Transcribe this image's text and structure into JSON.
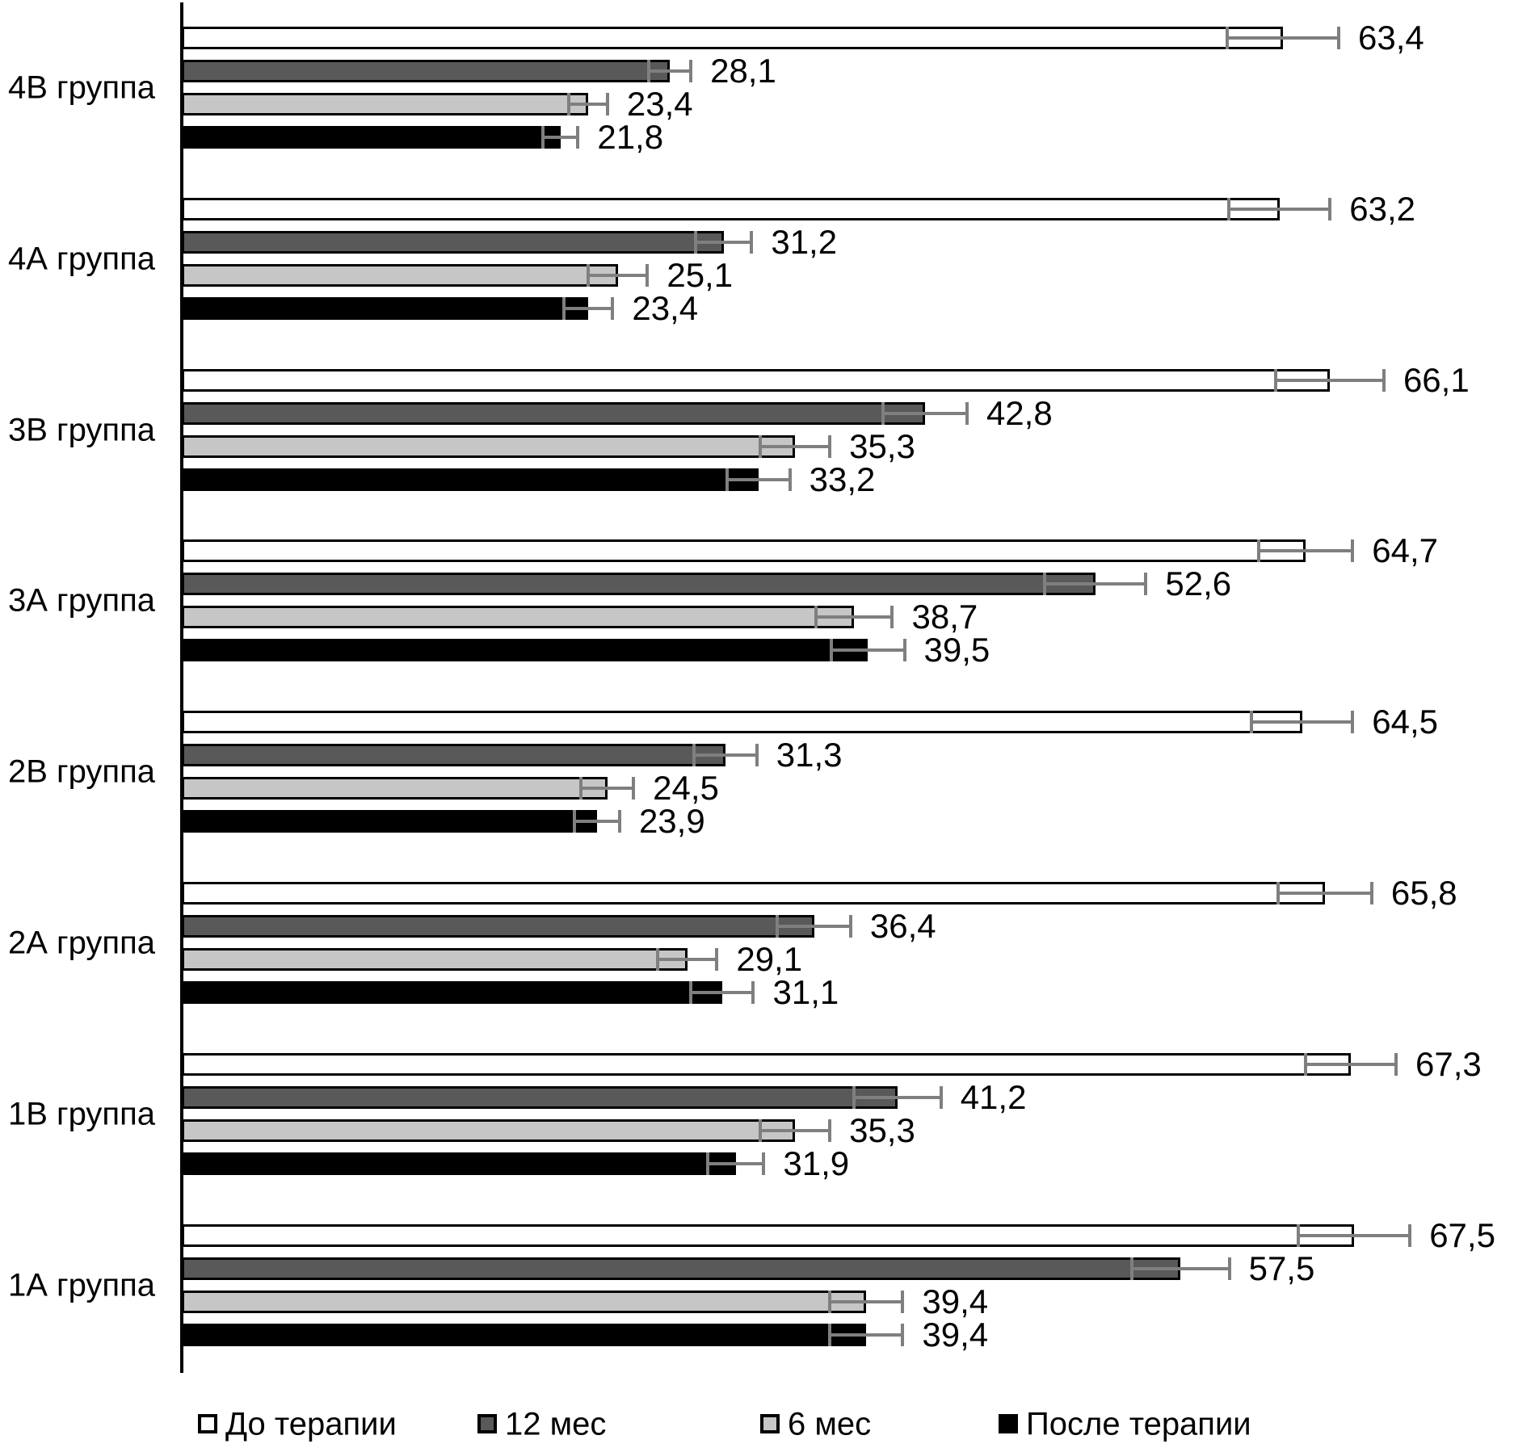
{
  "chart_data": {
    "type": "bar",
    "orientation": "horizontal",
    "title": "",
    "xlabel": "",
    "ylabel": "",
    "value_axis": {
      "min": 0,
      "implied_max": 72,
      "gridlines": false,
      "tick_labels": "none"
    },
    "decimal_separator": ",",
    "legend_position": "bottom",
    "legend": [
      {
        "name": "До терапии",
        "fill": "#ffffff"
      },
      {
        "name": "12 мес",
        "fill": "#595959"
      },
      {
        "name": "6 мес",
        "fill": "#c6c6c6"
      },
      {
        "name": "После терапии",
        "fill": "#000000"
      }
    ],
    "colors": {
      "bar_border": "#000000",
      "error_bar": "#7f7f7f",
      "text": "#000000",
      "background": "#ffffff"
    },
    "groups": [
      {
        "label": "4В группа",
        "bars": [
          {
            "series": "До терапии",
            "value": 63.4,
            "label": "63,4",
            "error": 3.3
          },
          {
            "series": "12 мес",
            "value": 28.1,
            "label": "28,1",
            "error": 1.3
          },
          {
            "series": "6 мес",
            "value": 23.4,
            "label": "23,4",
            "error": 1.2
          },
          {
            "series": "После терапии",
            "value": 21.8,
            "label": "21,8",
            "error": 1.1
          }
        ]
      },
      {
        "label": "4А группа",
        "bars": [
          {
            "series": "До терапии",
            "value": 63.2,
            "label": "63,2",
            "error": 3.0
          },
          {
            "series": "12 мес",
            "value": 31.2,
            "label": "31,2",
            "error": 1.7
          },
          {
            "series": "6 мес",
            "value": 25.1,
            "label": "25,1",
            "error": 1.8
          },
          {
            "series": "После терапии",
            "value": 23.4,
            "label": "23,4",
            "error": 1.5
          }
        ]
      },
      {
        "label": "3В группа",
        "bars": [
          {
            "series": "До терапии",
            "value": 66.1,
            "label": "66,1",
            "error": 3.2
          },
          {
            "series": "12 мес",
            "value": 42.8,
            "label": "42,8",
            "error": 2.5
          },
          {
            "series": "6 мес",
            "value": 35.3,
            "label": "35,3",
            "error": 2.1
          },
          {
            "series": "После терапии",
            "value": 33.2,
            "label": "33,2",
            "error": 1.9
          }
        ]
      },
      {
        "label": "3А группа",
        "bars": [
          {
            "series": "До терапии",
            "value": 64.7,
            "label": "64,7",
            "error": 2.8
          },
          {
            "series": "12 мес",
            "value": 52.6,
            "label": "52,6",
            "error": 3.0
          },
          {
            "series": "6 мес",
            "value": 38.7,
            "label": "38,7",
            "error": 2.3
          },
          {
            "series": "После терапии",
            "value": 39.5,
            "label": "39,5",
            "error": 2.2
          }
        ]
      },
      {
        "label": "2В группа",
        "bars": [
          {
            "series": "До терапии",
            "value": 64.5,
            "label": "64,5",
            "error": 3.0
          },
          {
            "series": "12 мес",
            "value": 31.3,
            "label": "31,3",
            "error": 1.9
          },
          {
            "series": "6 мес",
            "value": 24.5,
            "label": "24,5",
            "error": 1.6
          },
          {
            "series": "После терапии",
            "value": 23.9,
            "label": "23,9",
            "error": 1.4
          }
        ]
      },
      {
        "label": "2А группа",
        "bars": [
          {
            "series": "До терапии",
            "value": 65.8,
            "label": "65,8",
            "error": 2.8
          },
          {
            "series": "12 мес",
            "value": 36.4,
            "label": "36,4",
            "error": 2.2
          },
          {
            "series": "6 мес",
            "value": 29.1,
            "label": "29,1",
            "error": 1.8
          },
          {
            "series": "После терапии",
            "value": 31.1,
            "label": "31,1",
            "error": 1.9
          }
        ]
      },
      {
        "label": "1В группа",
        "bars": [
          {
            "series": "До терапии",
            "value": 67.3,
            "label": "67,3",
            "error": 2.7
          },
          {
            "series": "12 мес",
            "value": 41.2,
            "label": "41,2",
            "error": 2.6
          },
          {
            "series": "6 мес",
            "value": 35.3,
            "label": "35,3",
            "error": 2.1
          },
          {
            "series": "После терапии",
            "value": 31.9,
            "label": "31,9",
            "error": 1.7
          }
        ]
      },
      {
        "label": "1А группа",
        "bars": [
          {
            "series": "До терапии",
            "value": 67.5,
            "label": "67,5",
            "error": 3.3
          },
          {
            "series": "12 мес",
            "value": 57.5,
            "label": "57,5",
            "error": 2.9
          },
          {
            "series": "6 мес",
            "value": 39.4,
            "label": "39,4",
            "error": 2.2
          },
          {
            "series": "После терапии",
            "value": 39.4,
            "label": "39,4",
            "error": 2.2
          }
        ]
      }
    ]
  }
}
